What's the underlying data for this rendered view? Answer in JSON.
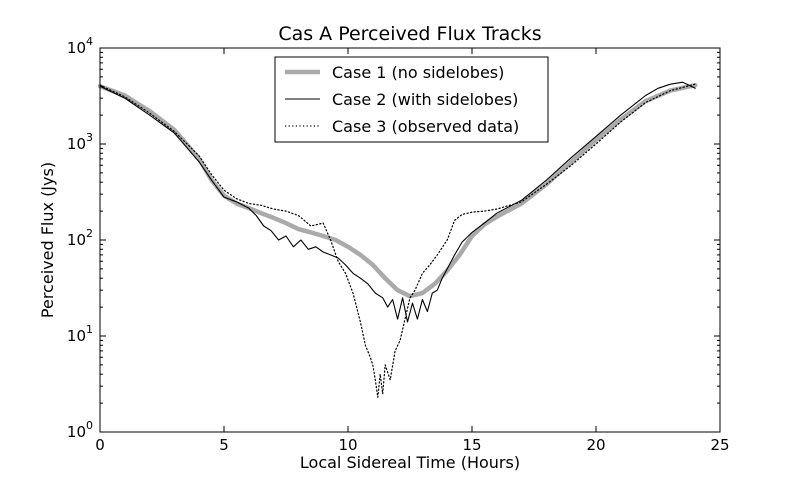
{
  "chart_data": {
    "type": "line",
    "title": "Cas A Perceived Flux Tracks",
    "xlabel": "Local Sidereal Time (Hours)",
    "ylabel": "Perceived Flux (Jys)",
    "xlim": [
      0,
      25
    ],
    "ylim": [
      1,
      10000
    ],
    "yscale": "log",
    "grid": false,
    "legend_position": "top-center",
    "xticks": [
      {
        "value": 0,
        "label": "0"
      },
      {
        "value": 5,
        "label": "5"
      },
      {
        "value": 10,
        "label": "10"
      },
      {
        "value": 15,
        "label": "15"
      },
      {
        "value": 20,
        "label": "20"
      },
      {
        "value": 25,
        "label": "25"
      }
    ],
    "yticks": [
      {
        "value": 1,
        "base": "10",
        "exp": "0"
      },
      {
        "value": 10,
        "base": "10",
        "exp": "1"
      },
      {
        "value": 100,
        "base": "10",
        "exp": "2"
      },
      {
        "value": 1000,
        "base": "10",
        "exp": "3"
      },
      {
        "value": 10000,
        "base": "10",
        "exp": "4"
      }
    ],
    "series": [
      {
        "name": "Case 1 (no sidelobes)",
        "style": "solid-thick",
        "color": "#aaaaaa",
        "x": [
          0,
          1,
          2,
          3,
          4,
          4.5,
          5,
          5.5,
          6,
          6.5,
          7,
          7.5,
          8,
          8.5,
          9,
          9.5,
          10,
          10.5,
          11,
          11.5,
          12,
          12.5,
          13,
          13.5,
          14,
          14.5,
          15,
          15.5,
          16,
          17,
          18,
          19,
          20,
          21,
          22,
          23,
          24
        ],
        "y": [
          4000,
          3200,
          2200,
          1400,
          700,
          420,
          290,
          240,
          215,
          190,
          170,
          150,
          130,
          120,
          110,
          100,
          85,
          70,
          55,
          40,
          30,
          26,
          28,
          35,
          48,
          70,
          110,
          145,
          175,
          240,
          380,
          650,
          1100,
          1800,
          2800,
          3600,
          4100
        ]
      },
      {
        "name": "Case 2 (with sidelobes)",
        "style": "solid-thin",
        "color": "#000000",
        "x": [
          0,
          1,
          2,
          3,
          4,
          4.5,
          5,
          5.5,
          6,
          6.3,
          6.6,
          6.9,
          7.2,
          7.5,
          7.8,
          8.1,
          8.4,
          8.7,
          9,
          9.3,
          9.6,
          9.9,
          10.2,
          10.5,
          10.8,
          11.1,
          11.4,
          11.6,
          11.8,
          12,
          12.2,
          12.4,
          12.6,
          12.8,
          13,
          13.2,
          13.4,
          13.6,
          13.8,
          14,
          14.3,
          14.6,
          15,
          15.5,
          16,
          17,
          18,
          19,
          20,
          21,
          22,
          22.5,
          23,
          23.5,
          24
        ],
        "y": [
          4000,
          3000,
          2000,
          1300,
          650,
          420,
          280,
          250,
          215,
          180,
          140,
          125,
          100,
          110,
          85,
          100,
          80,
          85,
          75,
          70,
          65,
          55,
          45,
          40,
          35,
          28,
          25,
          20,
          24,
          15,
          25,
          14,
          22,
          15,
          24,
          18,
          28,
          30,
          40,
          50,
          70,
          95,
          120,
          150,
          190,
          260,
          420,
          720,
          1200,
          2000,
          3200,
          3800,
          4200,
          4400,
          3800
        ]
      },
      {
        "name": "Case 3 (observed data)",
        "style": "dotted",
        "color": "#000000",
        "x": [
          0,
          1,
          2,
          3,
          4,
          4.5,
          5,
          5.5,
          6,
          6.5,
          7,
          7.5,
          8,
          8.5,
          9,
          9.3,
          9.6,
          9.9,
          10.2,
          10.5,
          10.7,
          10.9,
          11,
          11.1,
          11.2,
          11.3,
          11.4,
          11.5,
          11.7,
          11.9,
          12.1,
          12.3,
          12.5,
          12.7,
          13,
          13.3,
          13.6,
          14,
          14.3,
          14.6,
          15,
          15.5,
          16,
          17,
          18,
          19,
          20,
          21,
          22,
          23,
          24
        ],
        "y": [
          4100,
          3100,
          2100,
          1350,
          750,
          480,
          330,
          270,
          240,
          230,
          210,
          200,
          180,
          140,
          150,
          100,
          60,
          45,
          28,
          14,
          8,
          6,
          5,
          3.5,
          2.3,
          4,
          2.5,
          5,
          3.5,
          7,
          9,
          15,
          25,
          30,
          45,
          55,
          70,
          100,
          160,
          185,
          195,
          200,
          210,
          250,
          380,
          600,
          1000,
          1700,
          2700,
          3600,
          4200
        ]
      }
    ]
  }
}
